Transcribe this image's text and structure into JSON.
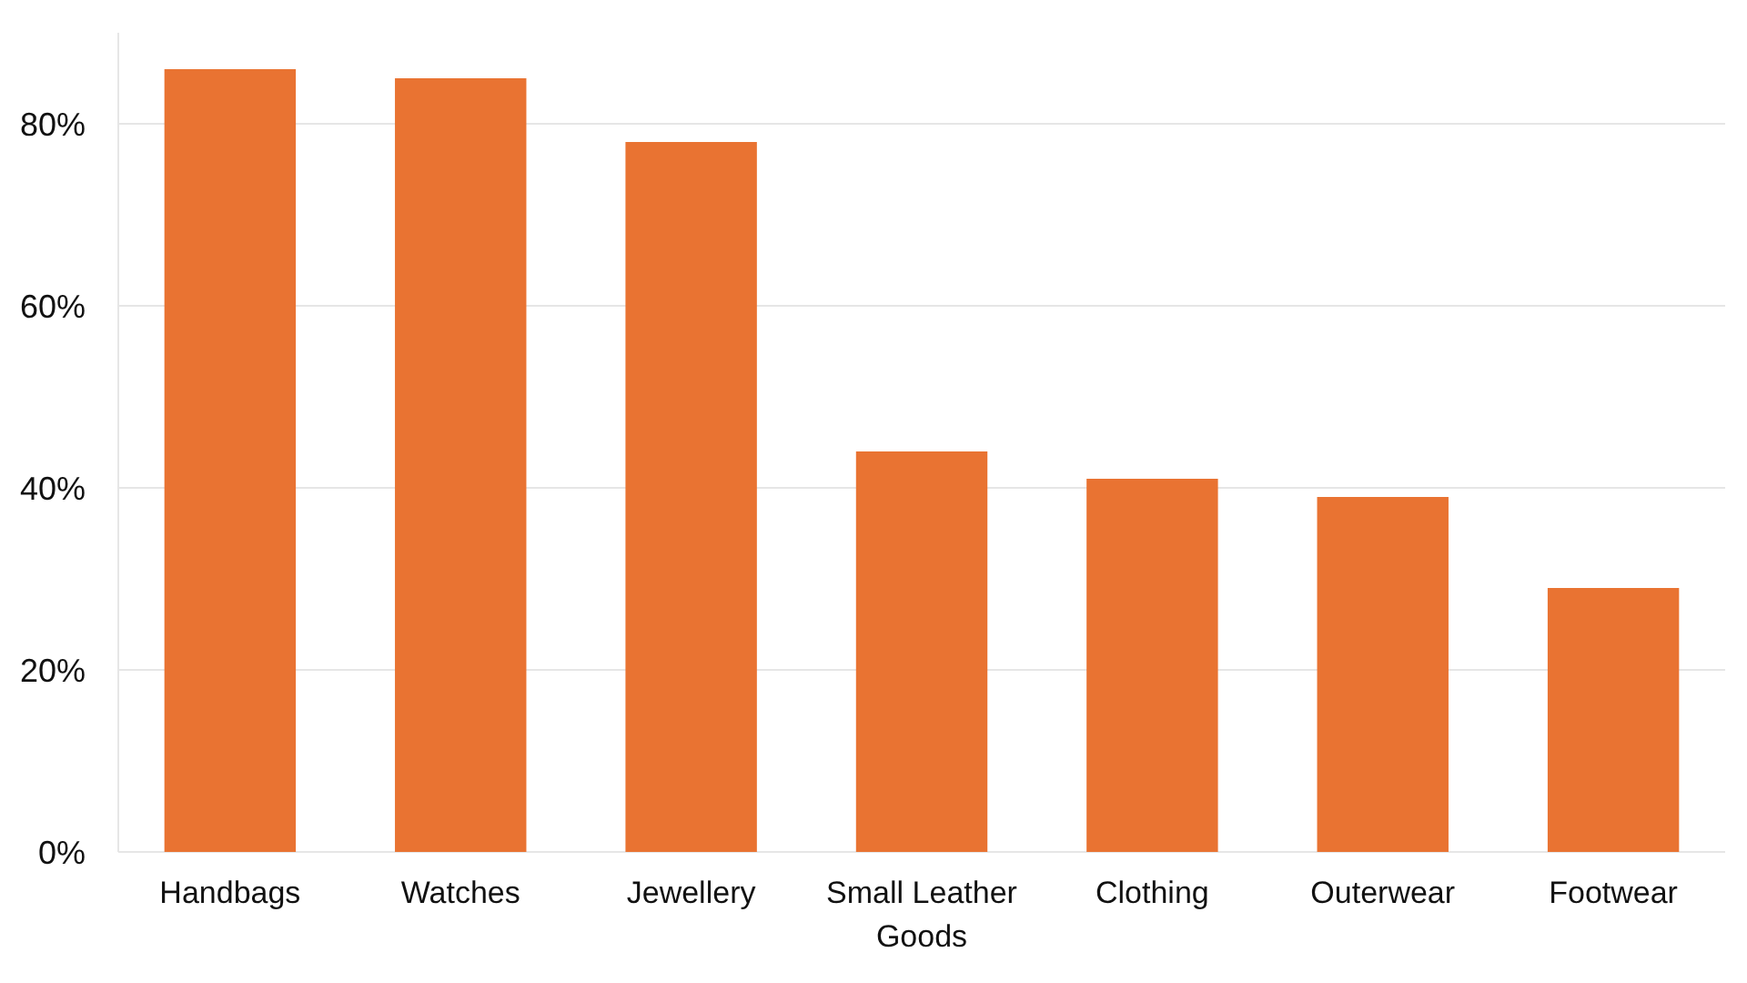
{
  "chart_data": {
    "type": "bar",
    "categories": [
      "Handbags",
      "Watches",
      "Jewellery",
      "Small Leather Goods",
      "Clothing",
      "Outerwear",
      "Footwear"
    ],
    "values": [
      86,
      85,
      78,
      44,
      41,
      39,
      29
    ],
    "color": "#e97332",
    "ylim": [
      0,
      90
    ],
    "yticks": [
      {
        "value": 0,
        "label": "0%"
      },
      {
        "value": 20,
        "label": "20%"
      },
      {
        "value": 40,
        "label": "40%"
      },
      {
        "value": 60,
        "label": "60%"
      },
      {
        "value": 80,
        "label": "80%"
      }
    ],
    "grid": "y"
  }
}
